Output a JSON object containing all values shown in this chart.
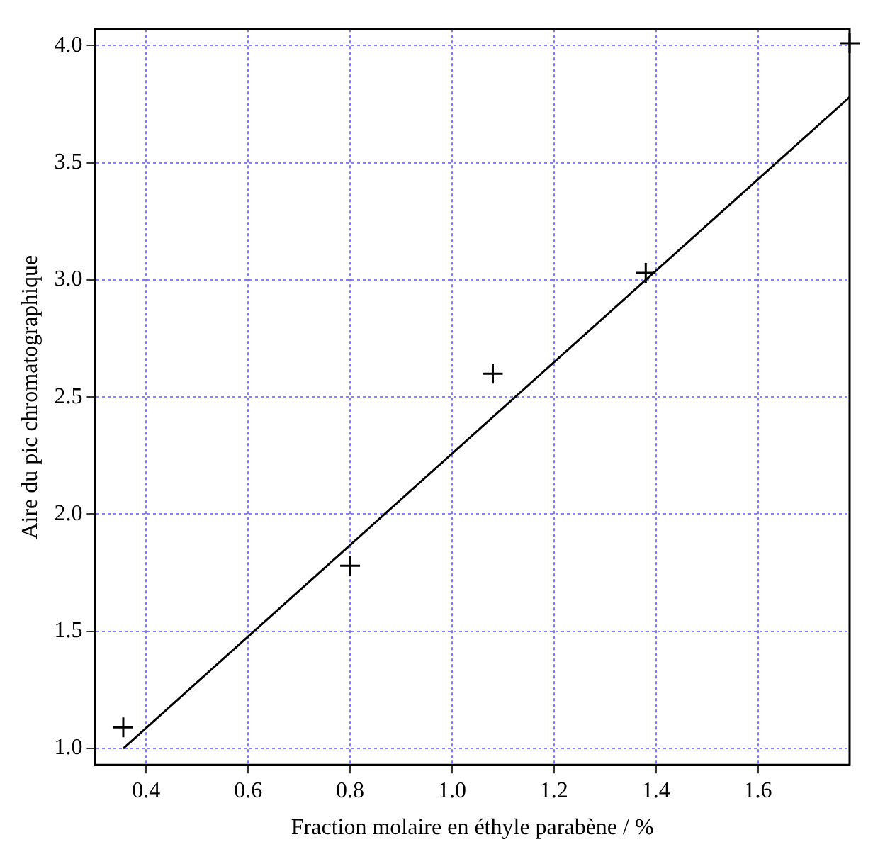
{
  "chart_data": {
    "type": "scatter",
    "xlabel": "Fraction molaire en éthyle parabène / %",
    "ylabel": "Aire du pic chromatographique",
    "xlim": [
      0.3,
      1.78
    ],
    "xticks": [
      {
        "value": 0.4,
        "label": "0.4"
      },
      {
        "value": 0.6,
        "label": "0.6"
      },
      {
        "value": 0.8,
        "label": "0.8"
      },
      {
        "value": 1.0,
        "label": "1.0"
      },
      {
        "value": 1.2,
        "label": "1.2"
      },
      {
        "value": 1.4,
        "label": "1.4"
      },
      {
        "value": 1.6,
        "label": "1.6"
      }
    ],
    "ylim": [
      0.93,
      4.07
    ],
    "yticks": [
      {
        "value": 1.0,
        "label": "1.0"
      },
      {
        "value": 1.5,
        "label": "1.5"
      },
      {
        "value": 2.0,
        "label": "2.0"
      },
      {
        "value": 2.5,
        "label": "2.5"
      },
      {
        "value": 3.0,
        "label": "3.0"
      },
      {
        "value": 3.5,
        "label": "3.5"
      },
      {
        "value": 4.0,
        "label": "4.0"
      }
    ],
    "grid": true,
    "series": [
      {
        "color": "#000000",
        "marker": "cross",
        "x": [
          0.355,
          0.8,
          1.08,
          1.38,
          1.78
        ],
        "values": [
          1.09,
          1.78,
          2.6,
          3.03,
          4.01
        ]
      },
      {
        "type": "line",
        "color": "#000000",
        "marker": "none",
        "x": [
          0.355,
          1.78
        ],
        "values": [
          1.0,
          3.78
        ]
      }
    ]
  }
}
